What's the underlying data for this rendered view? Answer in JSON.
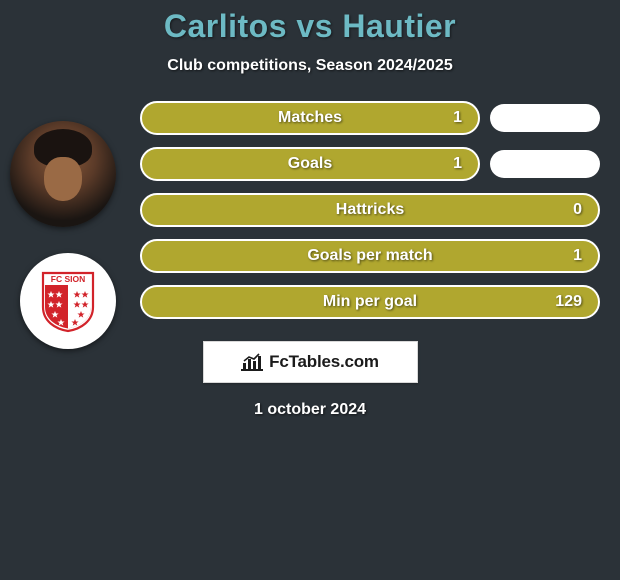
{
  "header": {
    "title": "Carlitos vs Hautier",
    "title_color": "#6dbac4",
    "subtitle": "Club competitions, Season 2024/2025"
  },
  "page": {
    "background_color": "#2b3238",
    "text_color": "#ffffff"
  },
  "player_avatar": {
    "name": "carlitos-headshot"
  },
  "club_logo": {
    "name": "fc-sion-logo",
    "text": "FC SION",
    "text_color": "#d2232a",
    "shield_red": "#d2232a",
    "shield_white": "#ffffff",
    "star_count": 13
  },
  "bars": {
    "fill_color": "#b0a72f",
    "border_color": "#ffffff",
    "ghost_color": "#ffffff",
    "items": [
      {
        "label": "Matches",
        "value": "1",
        "show_ghost": true
      },
      {
        "label": "Goals",
        "value": "1",
        "show_ghost": true
      },
      {
        "label": "Hattricks",
        "value": "0",
        "show_ghost": false
      },
      {
        "label": "Goals per match",
        "value": "1",
        "show_ghost": false
      },
      {
        "label": "Min per goal",
        "value": "129",
        "show_ghost": false
      }
    ]
  },
  "brand": {
    "text": "FcTables.com",
    "icon_name": "bar-chart-icon",
    "box_bg": "#ffffff",
    "text_color": "#1b1b1b"
  },
  "footer": {
    "date": "1 october 2024"
  }
}
